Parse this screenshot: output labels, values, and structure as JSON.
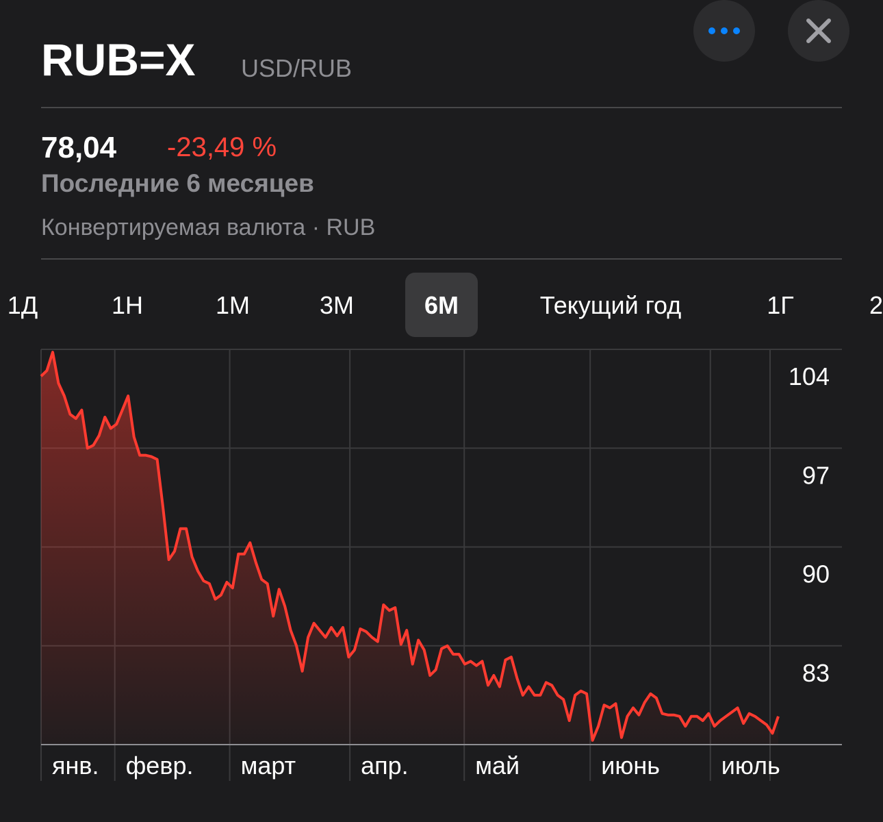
{
  "header": {
    "symbol": "RUB=X",
    "name": "USD/RUB",
    "price": "78,04",
    "change": "-23,49 %",
    "period": "Последние 6 месяцев",
    "description": "Конвертируемая валюта · RUB"
  },
  "tabs": [
    "1Д",
    "1Н",
    "1М",
    "3М",
    "6М",
    "Текущий год",
    "1Г",
    "2"
  ],
  "selected_tab": 4,
  "chart_data": {
    "type": "line",
    "color": "#ff3b30",
    "grid": true,
    "values": [
      102.1,
      102.5,
      103.8,
      101.6,
      100.7,
      99.4,
      99.1,
      99.7,
      97.0,
      97.2,
      97.9,
      99.2,
      98.4,
      98.7,
      99.7,
      100.7,
      97.8,
      96.5,
      96.5,
      96.4,
      96.2,
      92.8,
      89.1,
      89.7,
      91.3,
      91.3,
      89.3,
      88.3,
      87.6,
      87.4,
      86.3,
      86.6,
      87.5,
      87.1,
      89.5,
      89.5,
      90.3,
      88.9,
      87.7,
      87.4,
      85.1,
      87.0,
      85.8,
      84.1,
      83.0,
      81.2,
      83.6,
      84.6,
      84.1,
      83.6,
      84.3,
      83.7,
      84.3,
      82.2,
      82.7,
      84.2,
      84.0,
      83.6,
      83.3,
      85.9,
      85.5,
      85.7,
      83.1,
      84.1,
      81.7,
      83.4,
      82.7,
      80.9,
      81.3,
      82.8,
      83.0,
      82.4,
      82.4,
      81.7,
      81.9,
      81.6,
      81.9,
      80.2,
      80.9,
      80.1,
      82.0,
      82.2,
      80.7,
      79.5,
      80.1,
      79.5,
      79.5,
      80.4,
      80.2,
      79.5,
      79.2,
      77.7,
      79.5,
      79.8,
      79.6,
      76.3,
      77.3,
      78.8,
      78.6,
      78.9,
      76.5,
      78.0,
      78.6,
      78.1,
      79.0,
      79.6,
      79.3,
      78.2,
      78.1,
      78.1,
      78.0,
      77.3,
      78.0,
      78.0,
      77.7,
      78.2,
      77.3,
      77.7,
      78.0,
      78.3,
      78.6,
      77.5,
      78.2,
      78.0,
      77.7,
      77.4,
      76.8,
      78.0
    ],
    "xlim": [
      0,
      125
    ],
    "xticks": [
      {
        "value": 0,
        "label": "янв."
      },
      {
        "value": 12.7,
        "label": "февр."
      },
      {
        "value": 32.5,
        "label": "март"
      },
      {
        "value": 53.2,
        "label": "апр."
      },
      {
        "value": 72.9,
        "label": "май"
      },
      {
        "value": 94.6,
        "label": "июнь"
      },
      {
        "value": 115.3,
        "label": "июль"
      }
    ],
    "ylim": [
      76,
      104
    ],
    "yticks": [
      104,
      97,
      90,
      83
    ]
  }
}
